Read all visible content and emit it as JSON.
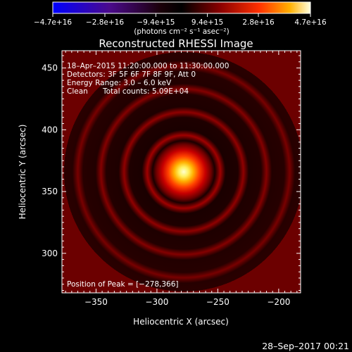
{
  "chart_data": {
    "type": "heatmap",
    "title": "Reconstructed RHESSI Image",
    "xlabel": "Heliocentric X (arcsec)",
    "ylabel": "Heliocentric Y (arcsec)",
    "xlim": [
      -378,
      -182
    ],
    "ylim": [
      268,
      464
    ],
    "x_ticks": [
      {
        "value": -350,
        "label": "−350"
      },
      {
        "value": -300,
        "label": "−300"
      },
      {
        "value": -250,
        "label": "−250"
      },
      {
        "value": -200,
        "label": "−200"
      }
    ],
    "y_ticks": [
      {
        "value": 300,
        "label": "300"
      },
      {
        "value": 350,
        "label": "350"
      },
      {
        "value": 400,
        "label": "400"
      },
      {
        "value": 450,
        "label": "450"
      }
    ],
    "colorbar": {
      "unit": "(photons cm⁻² s⁻¹ asec⁻²)",
      "ticks": [
        {
          "value": -4.7e+16,
          "label": "−4.7e+16"
        },
        {
          "value": -2.8e+16,
          "label": "−2.8e+16"
        },
        {
          "value": -9400000000000000.0,
          "label": "−9.4e+15"
        },
        {
          "value": 9400000000000000.0,
          "label": "9.4e+15"
        },
        {
          "value": 2.8e+16,
          "label": "2.8e+16"
        },
        {
          "value": 4.7e+16,
          "label": "4.7e+16"
        }
      ],
      "range": [
        -4.7e+16,
        4.7e+16
      ]
    },
    "peak": {
      "x": -278,
      "y": 366,
      "label": "Position of Peak = [−278,366]"
    },
    "ring_radii_arcsec": [
      30,
      49,
      68,
      87,
      105
    ],
    "annotations": [
      "18–Apr–2015 11:20:00.000 to 11:30:00.000",
      "Detectors: 3F 5F 6F 7F 8F 9F, Att 0",
      "Energy Range: 3.0 – 6.0 keV",
      "Clean",
      "Total counts: 5.09E+04"
    ]
  },
  "footer": {
    "timestamp": "28–Sep–2017 00:21"
  }
}
